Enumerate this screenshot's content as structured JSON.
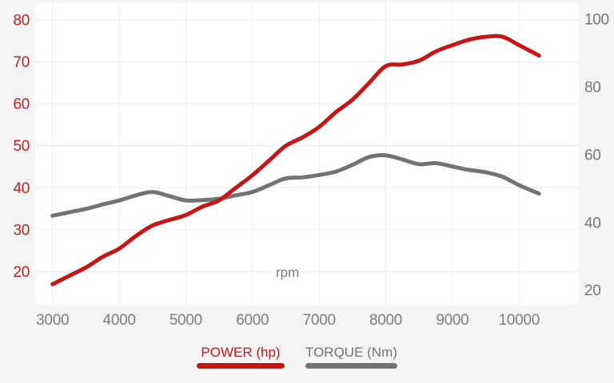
{
  "page": {
    "background": "#f5f5f6",
    "plot_background": "#ffffff",
    "grid_color": "#ececec"
  },
  "chart_data": {
    "type": "line",
    "title": "",
    "xlabel": "rpm",
    "grid": true,
    "legend_position": "bottom",
    "x": [
      3000,
      3250,
      3500,
      3750,
      4000,
      4250,
      4500,
      4750,
      5000,
      5250,
      5500,
      5750,
      6000,
      6250,
      6500,
      6750,
      7000,
      7250,
      7500,
      7750,
      8000,
      8250,
      8500,
      8750,
      9000,
      9250,
      9500,
      9750,
      10000,
      10300
    ],
    "series": [
      {
        "name": "POWER (hp)",
        "axis": "left",
        "color": "#c41616",
        "values": [
          17,
          19,
          21,
          23.5,
          25.5,
          28.5,
          31,
          32.3,
          33.5,
          35.5,
          37,
          40,
          43,
          46.5,
          50,
          52,
          54.5,
          58,
          61,
          65,
          69,
          69.4,
          70.3,
          72.5,
          74,
          75.3,
          76,
          76,
          74,
          71.5
        ]
      },
      {
        "name": "TORQUE (Nm)",
        "axis": "right",
        "color": "#737373",
        "values": [
          42,
          43,
          44,
          45.3,
          46.5,
          48,
          49,
          47.8,
          46.5,
          46.6,
          47,
          48,
          49,
          51,
          53,
          53.3,
          54,
          55,
          57,
          59.3,
          59.8,
          58.6,
          57.2,
          57.5,
          56.5,
          55.5,
          54.8,
          53.5,
          51,
          48.5
        ]
      }
    ],
    "x_axis": {
      "ticks": [
        3000,
        4000,
        5000,
        6000,
        7000,
        8000,
        9000,
        10000
      ],
      "range": [
        2740,
        10896
      ],
      "label_color": "#7d7d7d"
    },
    "left_axis": {
      "ticks": [
        80,
        70,
        60,
        50,
        40,
        30,
        20
      ],
      "range": [
        12.1,
        84.0
      ],
      "label_color": "#c32020"
    },
    "right_axis": {
      "ticks": [
        100,
        80,
        60,
        40,
        20
      ],
      "range": [
        15.7,
        104.7
      ],
      "label_color": "#767676"
    }
  }
}
